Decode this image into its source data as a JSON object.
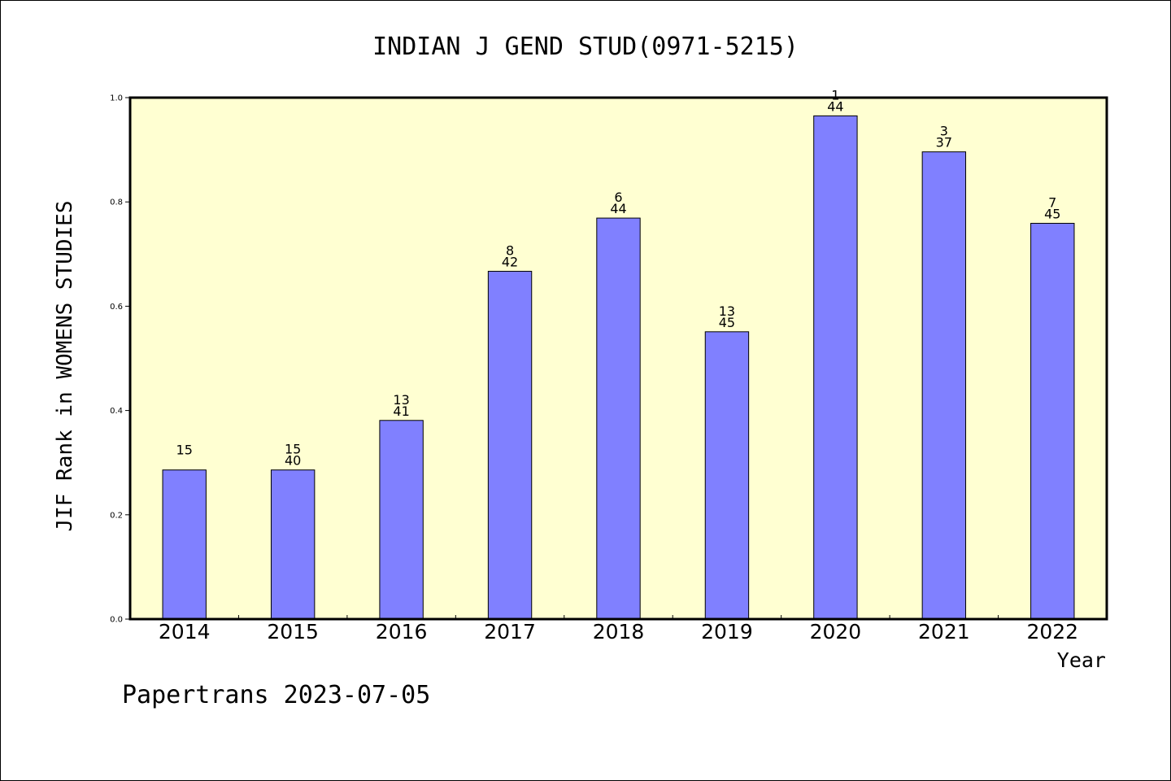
{
  "chart_data": {
    "type": "bar",
    "title": "INDIAN J GEND STUD(0971-5215)",
    "ylabel": "JIF Rank in WOMENS STUDIES",
    "xlabel": "Year",
    "ylim": [
      0,
      1.0
    ],
    "yticks": [
      "0.0",
      "0.2",
      "0.4",
      "0.6",
      "0.8",
      "1.0"
    ],
    "categories": [
      "2014",
      "2015",
      "2016",
      "2017",
      "2018",
      "2019",
      "2020",
      "2021",
      "2022"
    ],
    "values": [
      0.286,
      0.286,
      0.381,
      0.667,
      0.769,
      0.551,
      0.965,
      0.896,
      0.759
    ],
    "bar_labels": [
      [
        "15",
        ""
      ],
      [
        "15",
        "40"
      ],
      [
        "13",
        "41"
      ],
      [
        "8",
        "42"
      ],
      [
        "6",
        "44"
      ],
      [
        "13",
        "45"
      ],
      [
        "1",
        "44"
      ],
      [
        "3",
        "37"
      ],
      [
        "7",
        "45"
      ]
    ],
    "grid": false,
    "colors": {
      "plot_background": "#ffffd2",
      "bar": "#8080ff",
      "axis": "#000000"
    }
  },
  "footer": "Papertrans 2023-07-05"
}
